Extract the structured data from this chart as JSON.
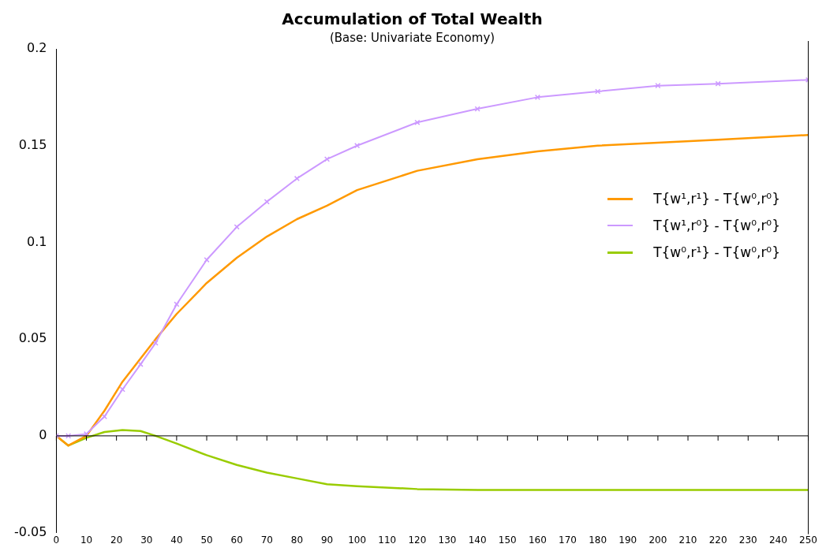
{
  "chart_data": {
    "type": "line",
    "title": "Accumulation of Total Wealth",
    "subtitle": "(Base: Univariate Economy)",
    "x": [
      0,
      4,
      10,
      16,
      22,
      28,
      33,
      40,
      50,
      60,
      70,
      80,
      90,
      100,
      120,
      140,
      160,
      180,
      200,
      220,
      250
    ],
    "series": [
      {
        "name": "T{w¹,r¹} - T{w⁰,r⁰}",
        "color": "#ff9900",
        "marker": "none",
        "values": [
          0,
          -0.005,
          0,
          0.013,
          0.028,
          0.04,
          0.05,
          0.063,
          0.079,
          0.092,
          0.103,
          0.112,
          0.119,
          0.127,
          0.137,
          0.143,
          0.147,
          0.15,
          0.1515,
          0.153,
          0.1555
        ]
      },
      {
        "name": "T{w¹,r⁰} - T{w⁰,r⁰}",
        "color": "#cc99ff",
        "marker": "cross",
        "values": [
          0,
          0,
          0.001,
          0.01,
          0.024,
          0.037,
          0.048,
          0.068,
          0.091,
          0.108,
          0.121,
          0.133,
          0.143,
          0.15,
          0.162,
          0.169,
          0.175,
          0.178,
          0.181,
          0.182,
          0.184
        ]
      },
      {
        "name": "T{w⁰,r¹} - T{w⁰,r⁰}",
        "color": "#99cc00",
        "marker": "none",
        "values": [
          0,
          -0.005,
          -0.001,
          0.002,
          0.003,
          0.0025,
          0,
          -0.004,
          -0.01,
          -0.015,
          -0.019,
          -0.022,
          -0.025,
          -0.026,
          -0.0275,
          -0.028,
          -0.028,
          -0.028,
          -0.028,
          -0.028,
          -0.028
        ]
      }
    ],
    "xlim": [
      0,
      250
    ],
    "xticks": [
      0,
      10,
      20,
      30,
      40,
      50,
      60,
      70,
      80,
      90,
      100,
      110,
      120,
      130,
      140,
      150,
      160,
      170,
      180,
      190,
      200,
      210,
      220,
      230,
      240,
      250
    ],
    "ylim": [
      -0.05,
      0.2
    ],
    "yticks": [
      -0.05,
      0,
      0.05,
      0.1,
      0.15,
      0.2
    ],
    "ref_lines": [
      {
        "axis": "y",
        "value": 0,
        "color": "#000000"
      }
    ],
    "grid": false,
    "legend": "right"
  }
}
